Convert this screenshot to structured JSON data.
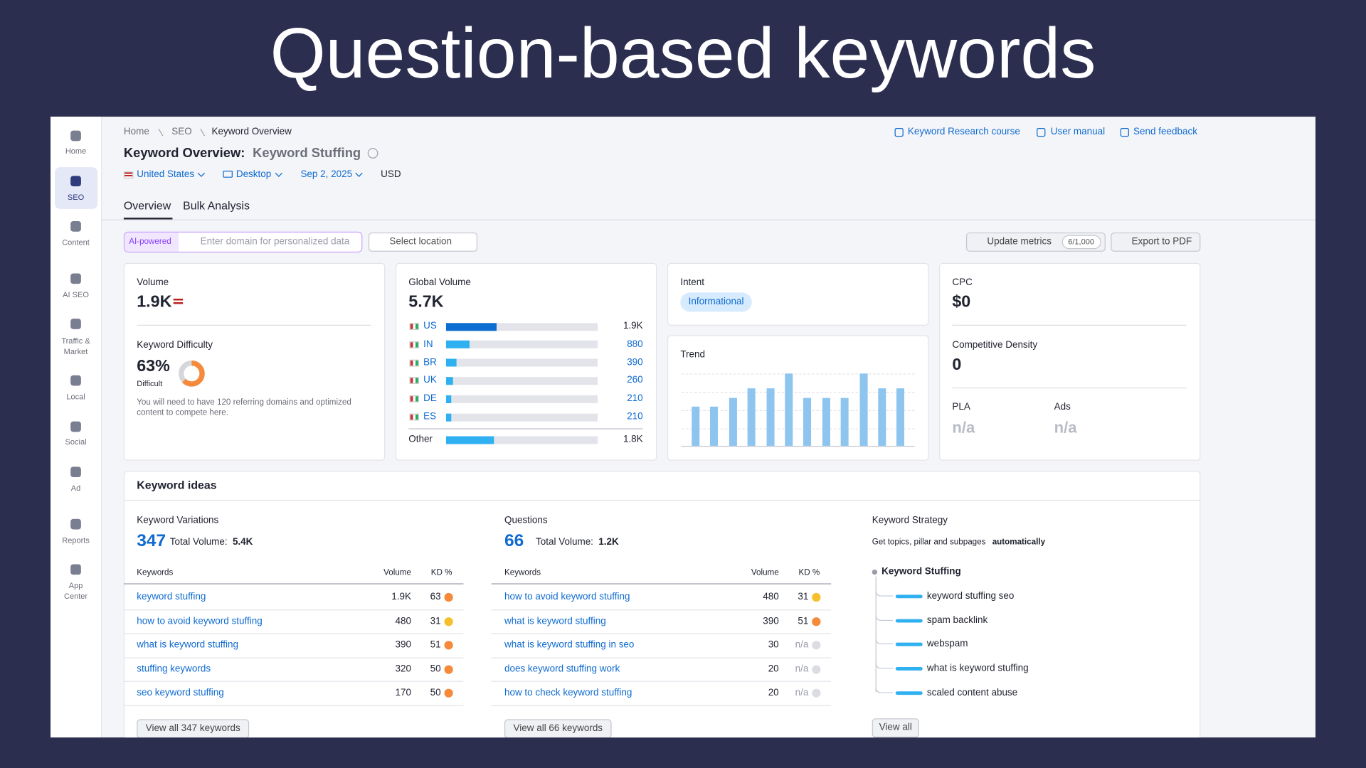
{
  "title": "Question-based keywords",
  "sidebar": [
    "Home",
    "SEO",
    "Content",
    "AI SEO",
    "Traffic &",
    "Market",
    "Local",
    "Social",
    "Ad",
    "Reports",
    "App",
    "Center"
  ],
  "breadcrumb": [
    "Home",
    "SEO",
    "Keyword Overview"
  ],
  "header_links": [
    "Keyword Research course",
    "User manual",
    "Send feedback"
  ],
  "page_title": {
    "prefix": "Keyword Overview:",
    "keyword": "Keyword Stuffing"
  },
  "filters": {
    "country": "United States",
    "device": "Desktop",
    "date": "Sep 2, 2025",
    "currency": "USD"
  },
  "tabs": [
    "Overview",
    "Bulk Analysis"
  ],
  "toolbar": {
    "ai_badge": "AI-powered",
    "domain_placeholder": "Enter domain for personalized data",
    "location": "Select location",
    "update": "Update metrics",
    "quota": "6/1,000",
    "export": "Export to PDF"
  },
  "volume": {
    "label": "Volume",
    "value": "1.9K"
  },
  "difficulty": {
    "label": "Keyword Difficulty",
    "score": {
      "value": 63,
      "label": "63%"
    },
    "level": "Difficult",
    "note": "You will need to have 120 referring domains and optimized content to compete here."
  },
  "global_volume": {
    "label": "Global Volume",
    "total": {
      "value": 5700,
      "label": "5.7K"
    },
    "countries": [
      {
        "code": "US",
        "volume": {
          "value": 1900,
          "label": "1.9K"
        },
        "color": "#0b6dd1"
      },
      {
        "code": "IN",
        "volume": 880,
        "color": "#2fb1f1"
      },
      {
        "code": "BR",
        "volume": 390,
        "color": "#2fb1f1"
      },
      {
        "code": "UK",
        "volume": 260,
        "color": "#2fb1f1"
      },
      {
        "code": "DE",
        "volume": 210,
        "color": "#2fb1f1"
      },
      {
        "code": "ES",
        "volume": 210,
        "color": "#2fb1f1"
      }
    ],
    "other": {
      "label": "Other",
      "volume": {
        "value": 1800,
        "label": "1.8K"
      },
      "color": "#2fb1f1"
    }
  },
  "intent": {
    "label": "Intent",
    "value": "Informational"
  },
  "trend": {
    "label": "Trend",
    "values": [
      54,
      54,
      66,
      80,
      80,
      100,
      66,
      66,
      66,
      100,
      80,
      80
    ],
    "color": "#8ec5ee"
  },
  "cpc": {
    "label": "CPC",
    "value": "$0"
  },
  "competitive_density": {
    "label": "Competitive Density",
    "value": 0
  },
  "pla": {
    "label": "PLA",
    "value": "n/a"
  },
  "ads": {
    "label": "Ads",
    "value": "n/a"
  },
  "keyword_ideas": {
    "title": "Keyword ideas",
    "variations": {
      "title": "Keyword Variations",
      "count": 347,
      "total_label": "Total Volume:",
      "total": "5.4K",
      "columns": [
        "Keywords",
        "Volume",
        "KD %"
      ],
      "rows": [
        {
          "keyword": "keyword stuffing",
          "volume": "1.9K",
          "kd": 63,
          "kd_color": "#f58a3a"
        },
        {
          "keyword": "how to avoid keyword stuffing",
          "volume": 480,
          "kd": 31,
          "kd_color": "#f5c02b"
        },
        {
          "keyword": "what is keyword stuffing",
          "volume": 390,
          "kd": 51,
          "kd_color": "#f58a3a"
        },
        {
          "keyword": "stuffing keywords",
          "volume": 320,
          "kd": 50,
          "kd_color": "#f58a3a"
        },
        {
          "keyword": "seo keyword stuffing",
          "volume": 170,
          "kd": 50,
          "kd_color": "#f58a3a"
        }
      ],
      "button": "View all 347 keywords"
    },
    "questions": {
      "title": "Questions",
      "count": 66,
      "total_label": "Total Volume:",
      "total": "1.2K",
      "columns": [
        "Keywords",
        "Volume",
        "KD %"
      ],
      "rows": [
        {
          "keyword": "how to avoid keyword stuffing",
          "volume": 480,
          "kd": 31,
          "kd_color": "#f5c02b"
        },
        {
          "keyword": "what is keyword stuffing",
          "volume": 390,
          "kd": 51,
          "kd_color": "#f58a3a"
        },
        {
          "keyword": "what is keyword stuffing in seo",
          "volume": 30,
          "kd": "n/a",
          "kd_color": "#dcdde3"
        },
        {
          "keyword": "does keyword stuffing work",
          "volume": 20,
          "kd": "n/a",
          "kd_color": "#dcdde3"
        },
        {
          "keyword": "how to check keyword stuffing",
          "volume": 20,
          "kd": "n/a",
          "kd_color": "#dcdde3"
        }
      ],
      "button": "View all 66 keywords"
    },
    "strategy": {
      "title": "Keyword Strategy",
      "description": "Get topics, pillar and subpages",
      "description_bold": "automatically",
      "root": "Keyword Stuffing",
      "topics": [
        "keyword stuffing seo",
        "spam backlink",
        "webspam",
        "what is keyword stuffing",
        "scaled content abuse"
      ],
      "button": "View all"
    }
  }
}
